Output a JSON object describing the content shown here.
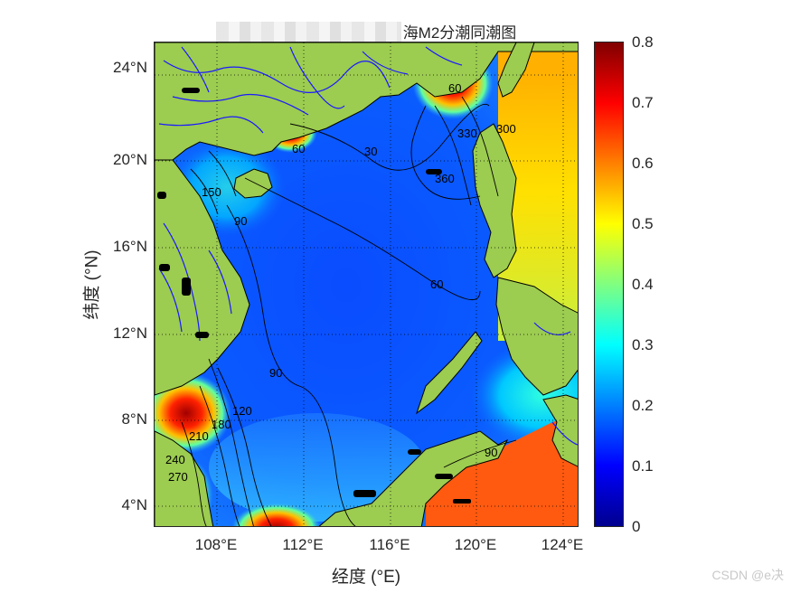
{
  "title": "海M2分潮同潮图",
  "x_axis": {
    "label": "经度 (°E)",
    "ticks": [
      "108°E",
      "112°E",
      "116°E",
      "120°E",
      "124°E"
    ],
    "values": [
      108,
      112,
      116,
      120,
      124
    ],
    "range": [
      105,
      125.5
    ]
  },
  "y_axis": {
    "label": "纬度 (°N)",
    "ticks": [
      "4°N",
      "8°N",
      "12°N",
      "16°N",
      "20°N",
      "24°N"
    ],
    "values": [
      4,
      8,
      12,
      16,
      20,
      24
    ],
    "range": [
      3,
      25.5
    ]
  },
  "colorbar": {
    "colormap": "jet",
    "range": [
      0,
      0.8
    ],
    "ticks": [
      "0",
      "0.1",
      "0.2",
      "0.3",
      "0.4",
      "0.5",
      "0.6",
      "0.7",
      "0.8"
    ],
    "values": [
      0,
      0.1,
      0.2,
      0.3,
      0.4,
      0.5,
      0.6,
      0.7,
      0.8
    ]
  },
  "contour_labels": [
    "30",
    "60",
    "90",
    "120",
    "150",
    "180",
    "210",
    "240",
    "270",
    "300",
    "330",
    "360",
    "60",
    "90",
    "60",
    "90"
  ],
  "colors": {
    "land": "#9ccc50",
    "rivers": "#1a1aff",
    "coast": "#000000",
    "grid": "#000000"
  },
  "watermark": "CSDN @e决"
}
